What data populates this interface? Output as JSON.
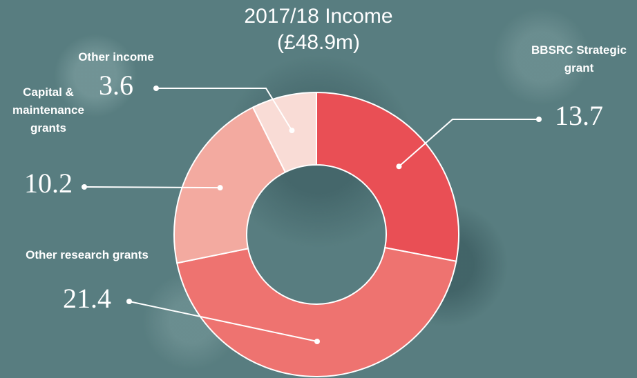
{
  "chart_data": {
    "type": "pie",
    "title": "2017/18 Income",
    "subtitle": "(£48.9m)",
    "categories": [
      "BBSRC Strategic grant",
      "Other research grants",
      "Capital & maintenance grants",
      "Other income"
    ],
    "values": [
      13.7,
      21.4,
      10.2,
      3.6
    ],
    "colors": [
      "#e94f55",
      "#ee7370",
      "#f3aaa0",
      "#f9dcd6"
    ],
    "donut": true
  }
}
